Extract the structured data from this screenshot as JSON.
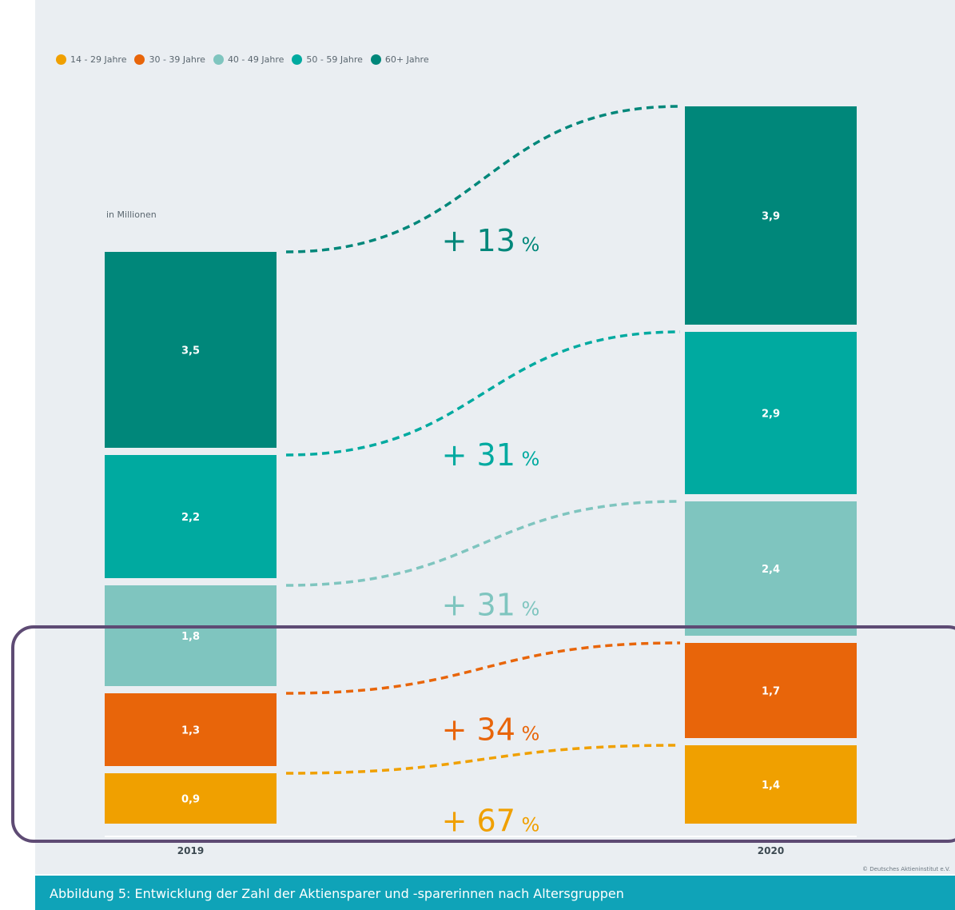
{
  "chart_data": {
    "type": "bar",
    "subtype": "stacked",
    "unit_label": "in Millionen",
    "categories": [
      "2019",
      "2020"
    ],
    "series": [
      {
        "name": "14 - 29 Jahre",
        "color": "#f0a000",
        "values": [
          0.9,
          1.4
        ],
        "labels": [
          "0,9",
          "1,4"
        ],
        "change": "+ 67"
      },
      {
        "name": "30 - 39 Jahre",
        "color": "#e8650a",
        "values": [
          1.3,
          1.7
        ],
        "labels": [
          "1,3",
          "1,7"
        ],
        "change": "+ 34"
      },
      {
        "name": "40 - 49 Jahre",
        "color": "#7fc5bf",
        "values": [
          1.8,
          2.4
        ],
        "labels": [
          "1,8",
          "2,4"
        ],
        "change": "+ 31"
      },
      {
        "name": "50 - 59 Jahre",
        "color": "#00aaa0",
        "values": [
          2.2,
          2.9
        ],
        "labels": [
          "2,2",
          "2,9"
        ],
        "change": "+ 31"
      },
      {
        "name": "60+ Jahre",
        "color": "#00877a",
        "values": [
          3.5,
          3.9
        ],
        "labels": [
          "3,5",
          "3,9"
        ],
        "change": "+ 13"
      }
    ],
    "change_unit": "%",
    "legend_position": "top-left"
  },
  "source": "© Deutsches Aktieninstitut e.V.",
  "caption": "Abbildung 5: Entwicklung der Zahl der Aktiensparer und -sparerinnen nach Altersgruppen"
}
